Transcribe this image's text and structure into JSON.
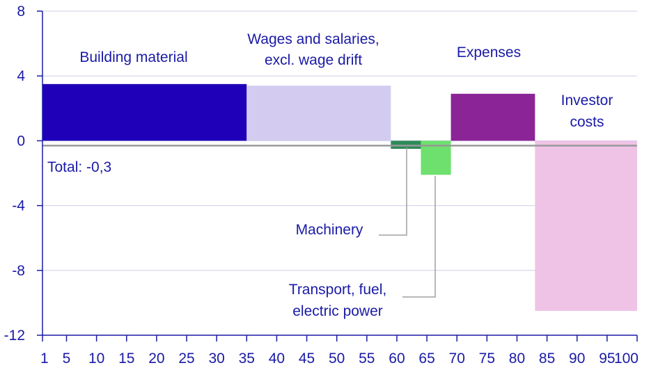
{
  "chart_data": {
    "type": "bar",
    "subtype": "variable-width bar (marimekko)",
    "x_axis": {
      "min": 1,
      "max": 100,
      "ticks": [
        "1",
        "5",
        "10",
        "15",
        "20",
        "25",
        "30",
        "35",
        "40",
        "45",
        "50",
        "55",
        "60",
        "65",
        "70",
        "75",
        "80",
        "85",
        "90",
        "95",
        "100"
      ]
    },
    "y_axis": {
      "min": -12,
      "max": 8,
      "ticks": [
        "8",
        "4",
        "0",
        "-4",
        "-8",
        "-12"
      ]
    },
    "grid": true,
    "segments": [
      {
        "name": "Building material",
        "label_lines": [
          "Building material"
        ],
        "x_start": 1,
        "x_end": 35,
        "value": 3.5,
        "color": "#1f00b8"
      },
      {
        "name": "Wages and salaries, excl. wage drift",
        "label_lines": [
          "Wages and salaries,",
          "excl. wage drift"
        ],
        "x_start": 35,
        "x_end": 59,
        "value": 3.4,
        "color": "#d3ccf0"
      },
      {
        "name": "Machinery",
        "label_lines": [
          "Machinery"
        ],
        "x_start": 59,
        "x_end": 64,
        "value": -0.5,
        "color": "#2e8b57"
      },
      {
        "name": "Transport, fuel, electric power",
        "label_lines": [
          "Transport, fuel,",
          "electric power"
        ],
        "x_start": 64,
        "x_end": 69,
        "value": -2.1,
        "color": "#6ee06e"
      },
      {
        "name": "Expenses",
        "label_lines": [
          "Expenses"
        ],
        "x_start": 69,
        "x_end": 83,
        "value": 2.9,
        "color": "#8b2597"
      },
      {
        "name": "Investor costs",
        "label_lines": [
          "Investor",
          "costs"
        ],
        "x_start": 83,
        "x_end": 100,
        "value": -10.5,
        "color": "#efc3e6"
      }
    ],
    "total": {
      "label": "Total: -0,3",
      "value": -0.3,
      "color": "#999999"
    }
  }
}
